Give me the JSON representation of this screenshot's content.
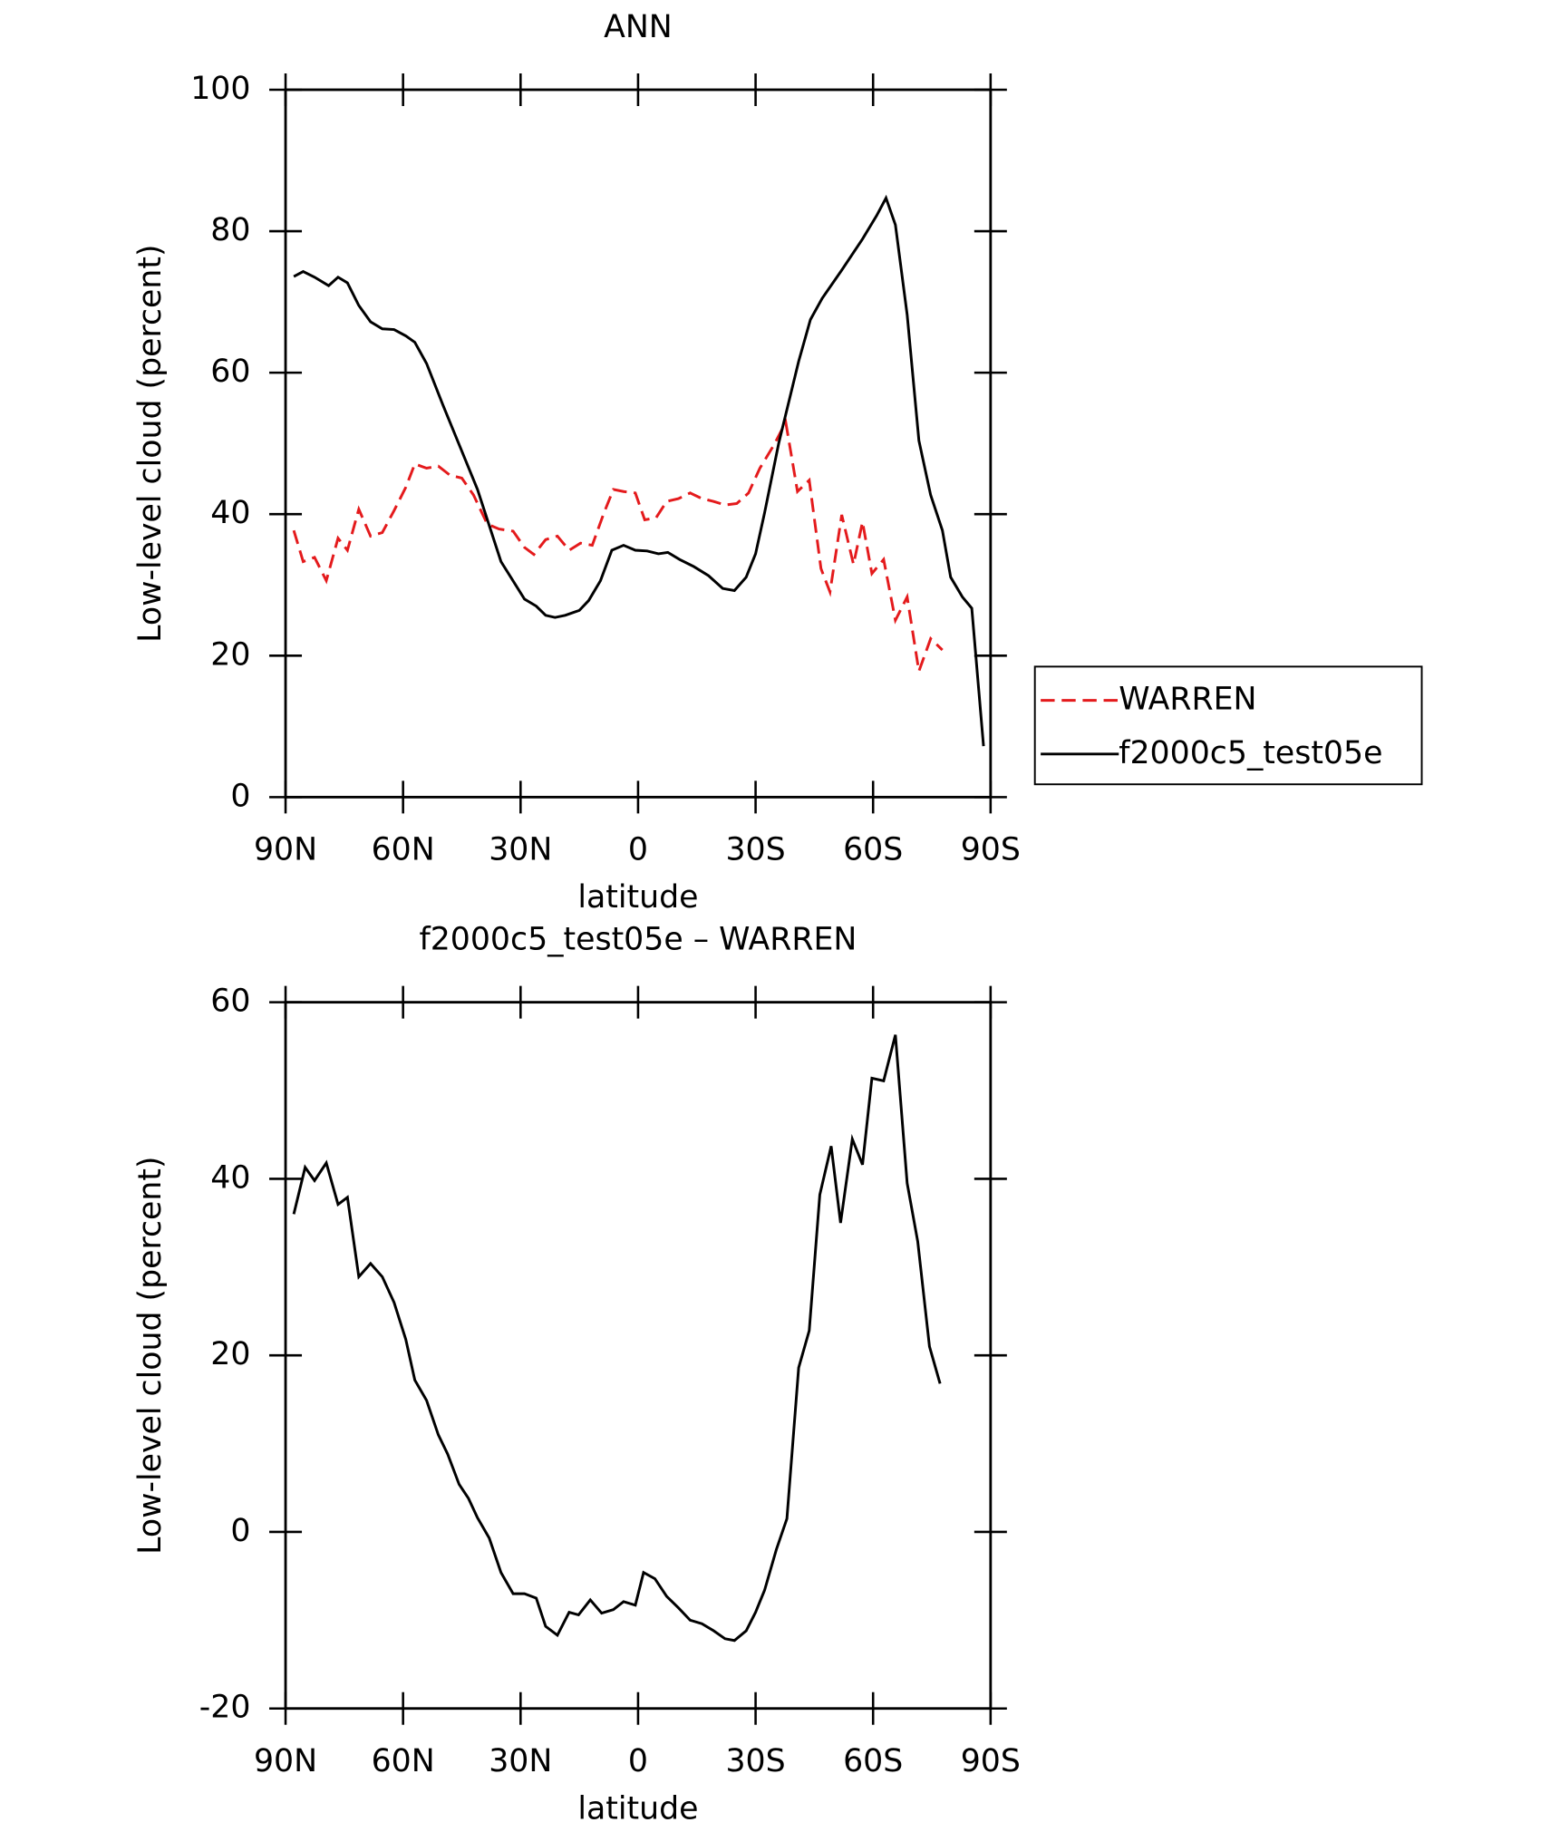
{
  "chart_data": [
    {
      "type": "line",
      "title": "ANN",
      "xlabel": "latitude",
      "ylabel": "Low-level cloud (percent)",
      "xlim": [
        90,
        -90
      ],
      "xticks": [
        {
          "value": 90,
          "label": "90N"
        },
        {
          "value": 60,
          "label": "60N"
        },
        {
          "value": 30,
          "label": "30N"
        },
        0,
        {
          "value": -30,
          "label": "30S"
        },
        {
          "value": -60,
          "label": "60S"
        },
        {
          "value": -90,
          "label": "90S"
        }
      ],
      "ylim": [
        0,
        100
      ],
      "yticks": [
        0,
        20,
        40,
        60,
        80,
        100
      ],
      "legend": "outside right",
      "series": [
        {
          "name": "WARREN",
          "color": "#e41a1c",
          "dash": true,
          "x": [
            87.9,
            85.5,
            82.6,
            79.6,
            76.6,
            74.2,
            71.3,
            68.3,
            65.3,
            62.3,
            59.3,
            57,
            54,
            51,
            48,
            45,
            42,
            38.5,
            35.5,
            31.9,
            29,
            26.6,
            23.6,
            20.6,
            17.6,
            14.7,
            11.7,
            8.7,
            6.3,
            3.7,
            0.7,
            -1.7,
            -4.6,
            -7.3,
            -10.3,
            -13.3,
            -16.3,
            -19.3,
            -22.2,
            -25.2,
            -28.2,
            -31.1,
            -34.7,
            -37.7,
            -40.7,
            -43.7,
            -46.7,
            -49,
            -52,
            -55,
            -57.3,
            -59.7,
            -62.7,
            -65.7,
            -68.7,
            -71.7,
            -74.7,
            -77.7
          ],
          "values": [
            37.7,
            33.3,
            33.9,
            30.6,
            36.6,
            34.9,
            40.7,
            36.9,
            37.4,
            40.5,
            43.8,
            47.1,
            46.5,
            46.8,
            45.5,
            45.1,
            42.7,
            38.6,
            37.9,
            37.6,
            35.3,
            34.3,
            36.4,
            36.9,
            34.9,
            35.9,
            35.6,
            40.2,
            43.5,
            43.2,
            43,
            39.2,
            39.5,
            41.8,
            42.2,
            43,
            42.2,
            41.8,
            41.3,
            41.5,
            43,
            46.5,
            49.8,
            53,
            43.2,
            44.8,
            32.3,
            29,
            39.9,
            32.9,
            38.9,
            31.6,
            33.6,
            25,
            28.3,
            17.8,
            22.4,
            20.8
          ]
        },
        {
          "name": "f2000c5_test05e",
          "color": "#000000",
          "dash": false,
          "x": [
            87.9,
            85.5,
            82.6,
            79,
            76.6,
            74.2,
            71.3,
            68.3,
            65.3,
            62.3,
            59.3,
            57,
            54,
            49.8,
            41,
            35,
            29,
            26,
            23.6,
            21.2,
            18.6,
            15,
            12.6,
            9.6,
            6.7,
            3.7,
            0.7,
            -2.3,
            -5.2,
            -7.6,
            -10.6,
            -14.2,
            -18,
            -21.6,
            -24.6,
            -27.6,
            -30,
            -32.3,
            -35.9,
            -41,
            -44,
            -47,
            -52,
            -57.3,
            -60.9,
            -63.3,
            -65.7,
            -68.7,
            -71.7,
            -74.7,
            -77.7,
            -79.8,
            -82.8,
            -85.2,
            -88.2
          ],
          "values": [
            73.6,
            74.3,
            73.5,
            72.3,
            73.5,
            72.7,
            69.5,
            67.2,
            66.2,
            66.1,
            65.2,
            64.3,
            61.3,
            55.4,
            43.5,
            33.3,
            28,
            27,
            25.7,
            25.4,
            25.7,
            26.4,
            27.8,
            30.6,
            34.9,
            35.6,
            34.9,
            34.8,
            34.4,
            34.6,
            33.6,
            32.6,
            31.3,
            29.5,
            29.2,
            31.1,
            34.4,
            40.2,
            50,
            61.6,
            67.5,
            70.5,
            74.5,
            78.9,
            82.2,
            84.7,
            80.9,
            68.2,
            50.4,
            42.7,
            37.7,
            31.1,
            28.3,
            26.7,
            7.2
          ]
        }
      ]
    },
    {
      "type": "line",
      "title": "f2000c5_test05e – WARREN",
      "xlabel": "latitude",
      "ylabel": "Low-level cloud (percent)",
      "xlim": [
        90,
        -90
      ],
      "xticks": [
        {
          "value": 90,
          "label": "90N"
        },
        {
          "value": 60,
          "label": "60N"
        },
        {
          "value": 30,
          "label": "30N"
        },
        0,
        {
          "value": -30,
          "label": "30S"
        },
        {
          "value": -60,
          "label": "60S"
        },
        {
          "value": -90,
          "label": "90S"
        }
      ],
      "ylim": [
        -20,
        60
      ],
      "yticks": [
        -20,
        0,
        20,
        40,
        60
      ],
      "series": [
        {
          "color": "#000000",
          "dash": false,
          "x": [
            87.9,
            85,
            82.6,
            79.6,
            76.6,
            74.2,
            71.3,
            68.3,
            65.3,
            62.3,
            59.3,
            57,
            54,
            51,
            48.6,
            45.7,
            43.3,
            41,
            38,
            35,
            31.9,
            29,
            26,
            23.6,
            20.6,
            17.6,
            15.2,
            12.2,
            9.3,
            6.3,
            3.7,
            0.7,
            -1.4,
            -4.3,
            -7.3,
            -10.3,
            -13.3,
            -16.3,
            -19.3,
            -22.2,
            -24.6,
            -27.6,
            -30,
            -32.3,
            -35.3,
            -38,
            -41,
            -43.7,
            -46.4,
            -49.3,
            -51.7,
            -54.7,
            -57.3,
            -59.7,
            -62.7,
            -65.7,
            -68.7,
            -71.4,
            -74.4,
            -77.1
          ],
          "values": [
            36,
            41.3,
            39.8,
            41.8,
            37.1,
            37.9,
            28.9,
            30.4,
            28.9,
            26,
            21.8,
            17.2,
            14.9,
            11,
            8.8,
            5.4,
            3.8,
            1.6,
            -0.7,
            -4.6,
            -7,
            -7,
            -7.5,
            -10.7,
            -11.7,
            -9.1,
            -9.4,
            -7.7,
            -9.2,
            -8.8,
            -7.9,
            -8.3,
            -4.6,
            -5.3,
            -7.3,
            -8.6,
            -10,
            -10.4,
            -11.2,
            -12.1,
            -12.3,
            -11.2,
            -9.1,
            -6.6,
            -2,
            1.5,
            18.6,
            22.8,
            38.2,
            43.7,
            35,
            44.5,
            41.6,
            51.4,
            51.1,
            56.3,
            39.5,
            32.9,
            21,
            16.8
          ]
        }
      ]
    }
  ]
}
